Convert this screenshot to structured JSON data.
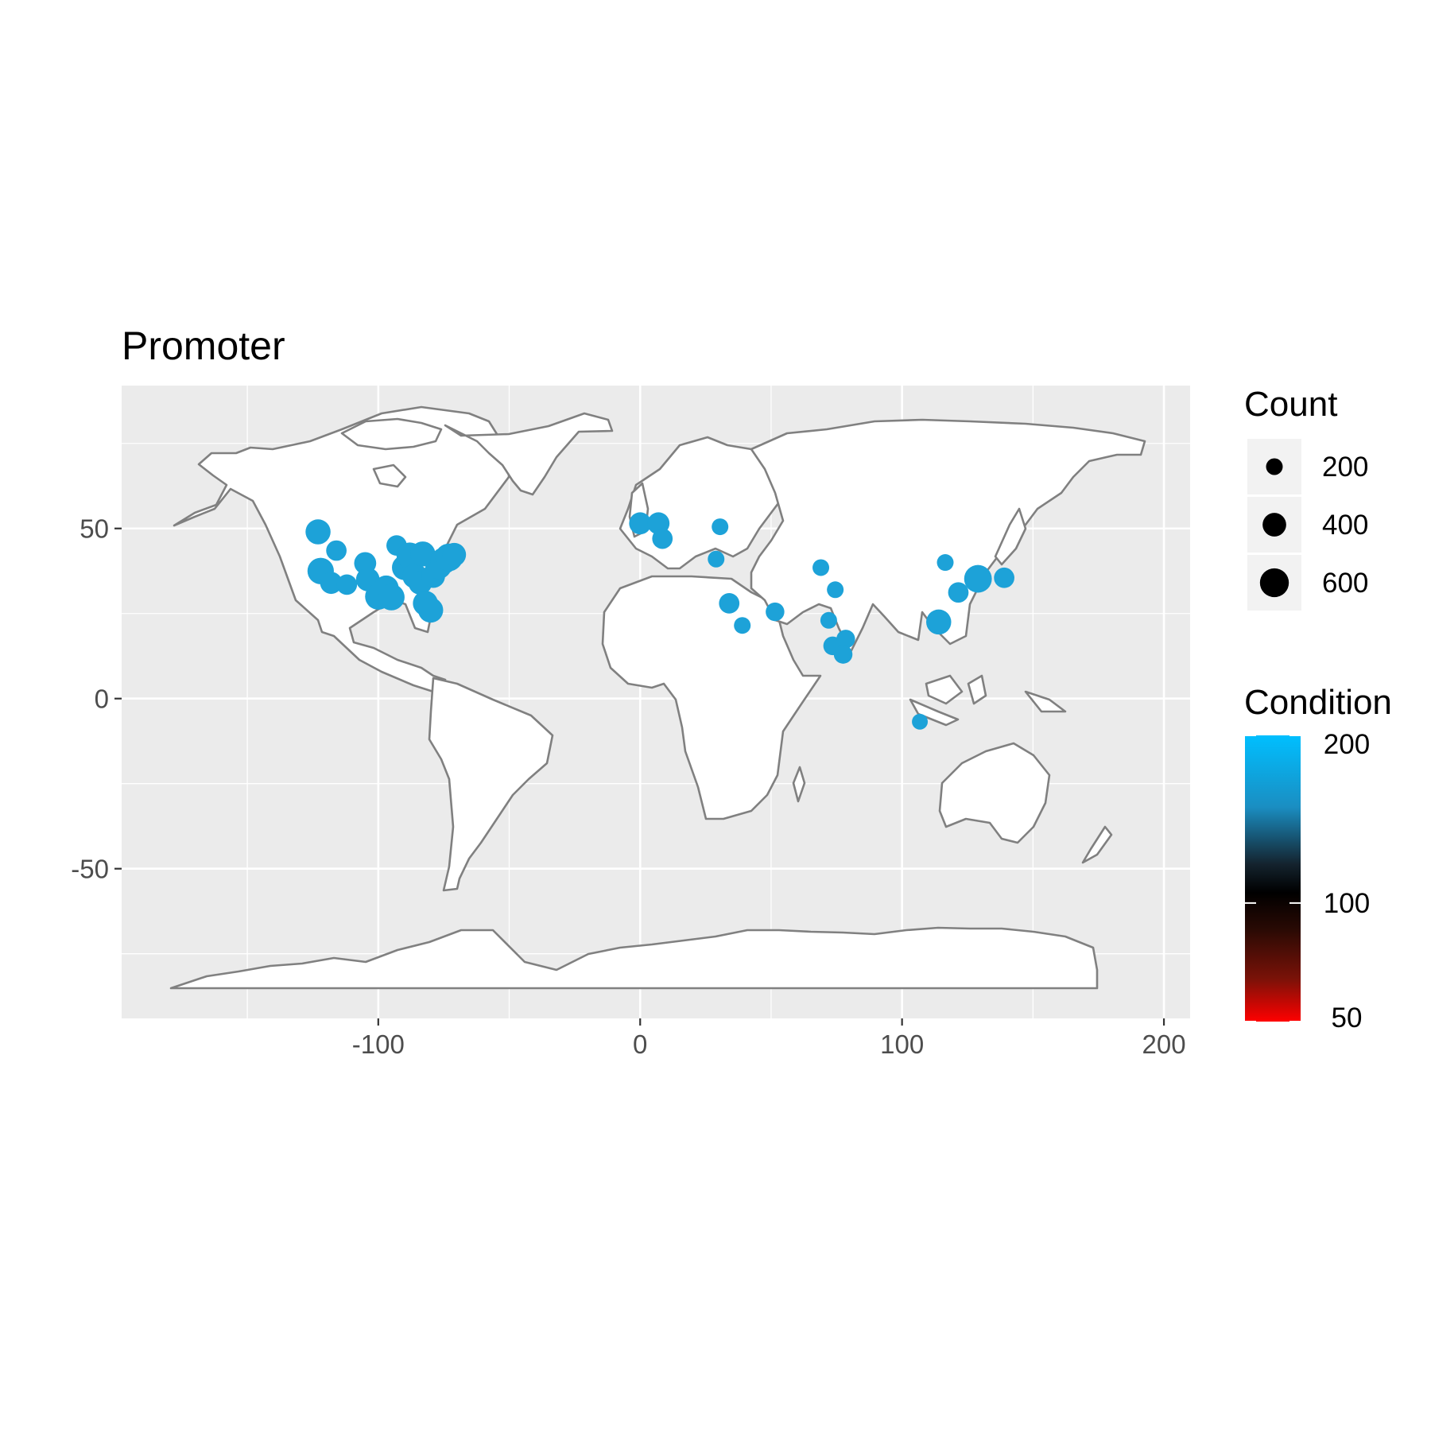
{
  "chart_data": {
    "type": "scatter",
    "title": "Promoter",
    "xlabel": "",
    "ylabel": "",
    "xlim": [
      -198,
      210
    ],
    "ylim": [
      -94,
      92
    ],
    "x_ticks": [
      -100,
      0,
      100,
      200
    ],
    "x_tick_labels": [
      "-100",
      "0",
      "100",
      "200"
    ],
    "y_ticks": [
      -50,
      0,
      50
    ],
    "y_tick_labels": [
      "-50",
      "0",
      "50"
    ],
    "grid": true,
    "background": "#ebebeb",
    "land_color": "#ffffff",
    "border_color": "#808080",
    "point_color": "#1da2d8",
    "points": [
      {
        "lon": -123,
        "lat": 49,
        "count": 450
      },
      {
        "lon": -122,
        "lat": 37.5,
        "count": 500
      },
      {
        "lon": -118,
        "lat": 34,
        "count": 350
      },
      {
        "lon": -116,
        "lat": 43.5,
        "count": 300
      },
      {
        "lon": -112,
        "lat": 33.5,
        "count": 300
      },
      {
        "lon": -105,
        "lat": 39.8,
        "count": 350
      },
      {
        "lon": -104,
        "lat": 35,
        "count": 400
      },
      {
        "lon": -100,
        "lat": 30,
        "count": 500
      },
      {
        "lon": -97,
        "lat": 32.5,
        "count": 450
      },
      {
        "lon": -95,
        "lat": 29.8,
        "count": 500
      },
      {
        "lon": -93,
        "lat": 45,
        "count": 300
      },
      {
        "lon": -90,
        "lat": 38.5,
        "count": 450
      },
      {
        "lon": -88,
        "lat": 42,
        "count": 500
      },
      {
        "lon": -86,
        "lat": 36,
        "count": 450
      },
      {
        "lon": -84,
        "lat": 34,
        "count": 400
      },
      {
        "lon": -83,
        "lat": 42.5,
        "count": 450
      },
      {
        "lon": -82,
        "lat": 28,
        "count": 450
      },
      {
        "lon": -80,
        "lat": 26,
        "count": 450
      },
      {
        "lon": -79,
        "lat": 36,
        "count": 400
      },
      {
        "lon": -77,
        "lat": 39,
        "count": 500
      },
      {
        "lon": -75,
        "lat": 40.5,
        "count": 500
      },
      {
        "lon": -73,
        "lat": 41.5,
        "count": 550
      },
      {
        "lon": -71,
        "lat": 42.3,
        "count": 400
      },
      {
        "lon": 0,
        "lat": 51.5,
        "count": 350
      },
      {
        "lon": 7,
        "lat": 51.5,
        "count": 350
      },
      {
        "lon": 8.5,
        "lat": 47,
        "count": 300
      },
      {
        "lon": 30.5,
        "lat": 50.5,
        "count": 200
      },
      {
        "lon": 29,
        "lat": 41,
        "count": 200
      },
      {
        "lon": 34,
        "lat": 28,
        "count": 300
      },
      {
        "lon": 39,
        "lat": 21.5,
        "count": 200
      },
      {
        "lon": 51.5,
        "lat": 25.5,
        "count": 250
      },
      {
        "lon": 69,
        "lat": 38.5,
        "count": 200
      },
      {
        "lon": 74.5,
        "lat": 32,
        "count": 200
      },
      {
        "lon": 72,
        "lat": 23,
        "count": 200
      },
      {
        "lon": 73.5,
        "lat": 15.5,
        "count": 250
      },
      {
        "lon": 78.5,
        "lat": 17.5,
        "count": 250
      },
      {
        "lon": 77.5,
        "lat": 13,
        "count": 250
      },
      {
        "lon": 106.8,
        "lat": -6.8,
        "count": 180
      },
      {
        "lon": 114,
        "lat": 22.5,
        "count": 450
      },
      {
        "lon": 116.5,
        "lat": 40,
        "count": 200
      },
      {
        "lon": 121.5,
        "lat": 31.2,
        "count": 300
      },
      {
        "lon": 129,
        "lat": 35.2,
        "count": 550
      },
      {
        "lon": 139,
        "lat": 35.5,
        "count": 300
      }
    ]
  },
  "legend": {
    "count_title": "Count",
    "count_items": [
      {
        "label": "200",
        "value": 200
      },
      {
        "label": "400",
        "value": 400
      },
      {
        "label": "600",
        "value": 600
      }
    ],
    "condition_title": "Condition",
    "condition_ticks": [
      {
        "label": "200",
        "value": 200
      },
      {
        "label": "100",
        "value": 100
      },
      {
        "label": "50",
        "value": 50
      }
    ],
    "condition_range": [
      50,
      200
    ],
    "gradient_colors": [
      "#00bfff",
      "#1a8ec2",
      "#14232e",
      "#000000",
      "#2a0a04",
      "#7a1208",
      "#ff0000"
    ]
  }
}
